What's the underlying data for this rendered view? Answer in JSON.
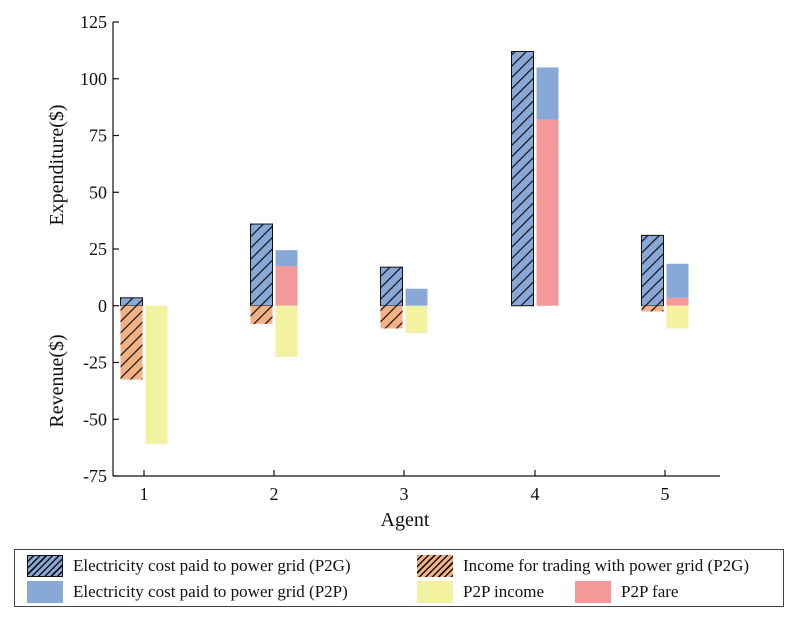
{
  "chart_data": {
    "type": "bar",
    "categories": [
      "1",
      "2",
      "3",
      "4",
      "5"
    ],
    "xlabel": "Agent",
    "ylabel_top": "Expenditure($)",
    "ylabel_bottom": "Revenue($)",
    "ylim": [
      -75,
      125
    ],
    "yticks": [
      125,
      100,
      75,
      50,
      25,
      0,
      -25,
      -50,
      -75
    ],
    "grid": false,
    "legend_position": "bottom",
    "series": [
      {
        "name": "Electricity cost paid to power grid (P2G)",
        "bar": "left",
        "values": [
          3.5,
          36,
          17,
          112,
          31
        ],
        "color": "#88a8d8",
        "pattern": "hatch"
      },
      {
        "name": "Income for trading with power grid (P2G)",
        "bar": "left",
        "values": [
          -32.5,
          -8,
          -10,
          0,
          -2.5
        ],
        "color": "#f4b184",
        "pattern": "hatch"
      },
      {
        "name": "Electricity cost paid to power grid (P2P)",
        "bar": "right",
        "stack_on": "P2P fare",
        "values": [
          0,
          7,
          7.5,
          23,
          15
        ],
        "color": "#88a8d8",
        "pattern": "solid"
      },
      {
        "name": "P2P income",
        "bar": "right",
        "values": [
          -61,
          -22.5,
          -12,
          0,
          -10
        ],
        "color": "#f2f2a0",
        "pattern": "solid"
      },
      {
        "name": "P2P fare",
        "bar": "right",
        "values": [
          0,
          17.5,
          0,
          82,
          3.5
        ],
        "color": "#f4999a",
        "pattern": "solid"
      }
    ]
  }
}
